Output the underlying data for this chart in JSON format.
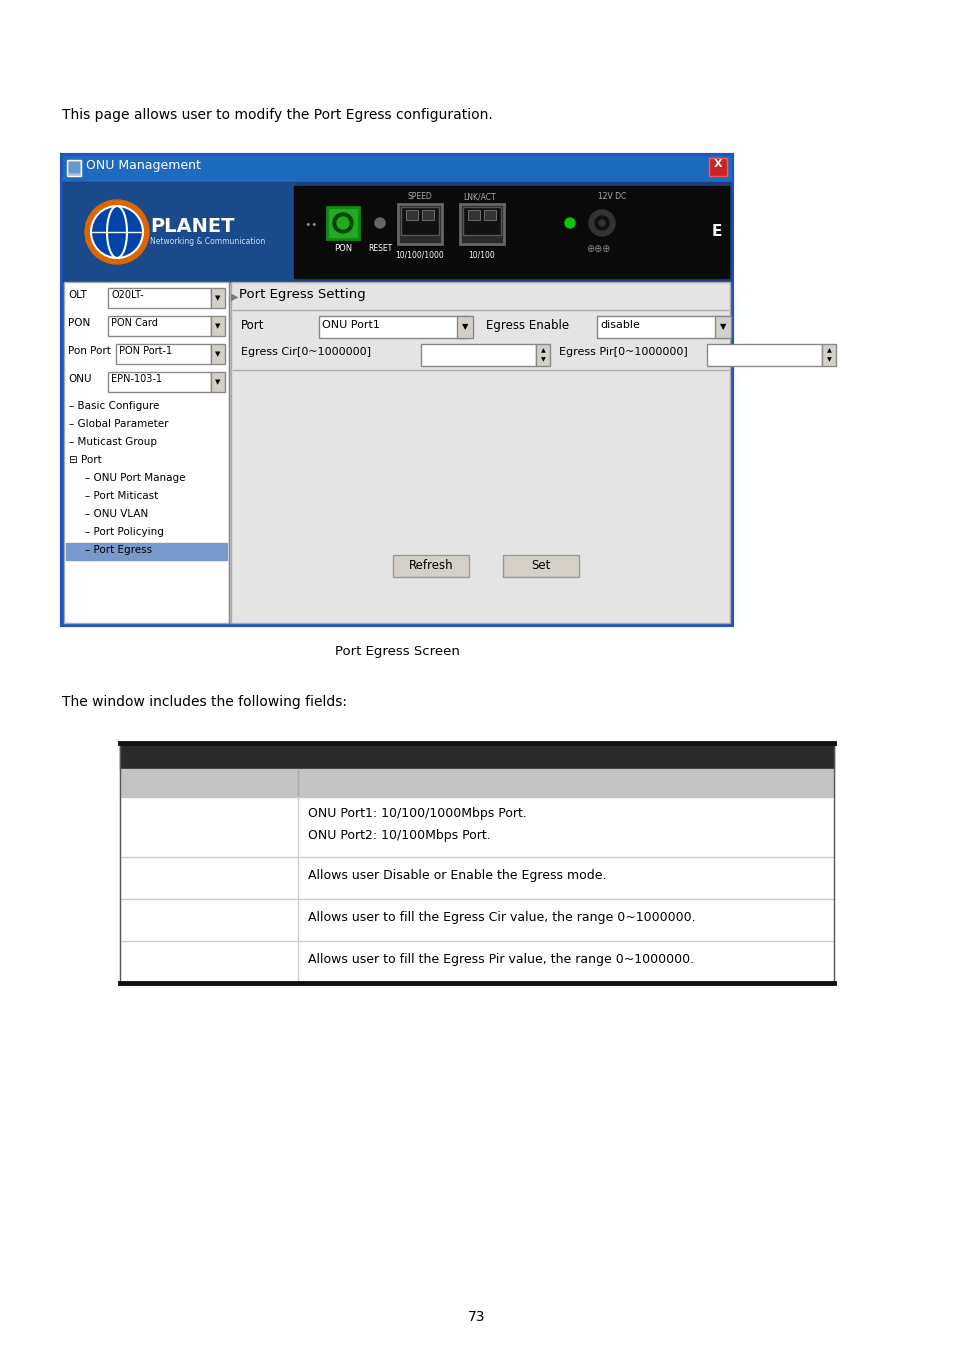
{
  "page_text_top": "This page allows user to modify the Port Egress configuration.",
  "window_title": "ONU Management",
  "panel_left_labels": [
    "OLT",
    "PON",
    "Pon Port",
    "ONU"
  ],
  "panel_left_values": [
    "O20LT-",
    "PON Card",
    "PON Port-1",
    "EPN-103-1"
  ],
  "tree_items": [
    "Basic Configure",
    "Global Parameter",
    "Muticast Group",
    "Port",
    "ONU Port Manage",
    "Port Miticast",
    "ONU VLAN",
    "Port Policying",
    "Port Egress"
  ],
  "tree_indents": [
    0,
    0,
    0,
    0,
    1,
    1,
    1,
    1,
    1
  ],
  "tree_is_port": [
    false,
    false,
    false,
    true,
    false,
    false,
    false,
    false,
    false
  ],
  "tree_selected": [
    false,
    false,
    false,
    false,
    false,
    false,
    false,
    false,
    true
  ],
  "port_egress_title": "Port Egress Setting",
  "buttons": [
    "Refresh",
    "Set"
  ],
  "caption": "Port Egress Screen",
  "window_below_text": "The window includes the following fields:",
  "table_rows": [
    [
      "ONU Port1: 10/100/1000Mbps Port.",
      "ONU Port2: 10/100Mbps Port."
    ],
    [
      "Allows user Disable or Enable the Egress mode."
    ],
    [
      "Allows user to fill the Egress Cir value, the range 0~1000000."
    ],
    [
      "Allows user to fill the Egress Pir value, the range 0~1000000."
    ]
  ],
  "page_number": "73",
  "bg_color": "#ffffff",
  "titlebar_grad_left": "#4a90d9",
  "titlebar_grad_right": "#1a5fb4",
  "device_bg": "#1a3060",
  "device_black": "#111111",
  "left_panel_bg": "#f0f0f0",
  "right_panel_bg": "#e0e0e0",
  "win_border": "#2255bb",
  "table_dark_header": "#282828",
  "table_gray_header": "#c8c8c8",
  "selected_bg": "#7799cc"
}
